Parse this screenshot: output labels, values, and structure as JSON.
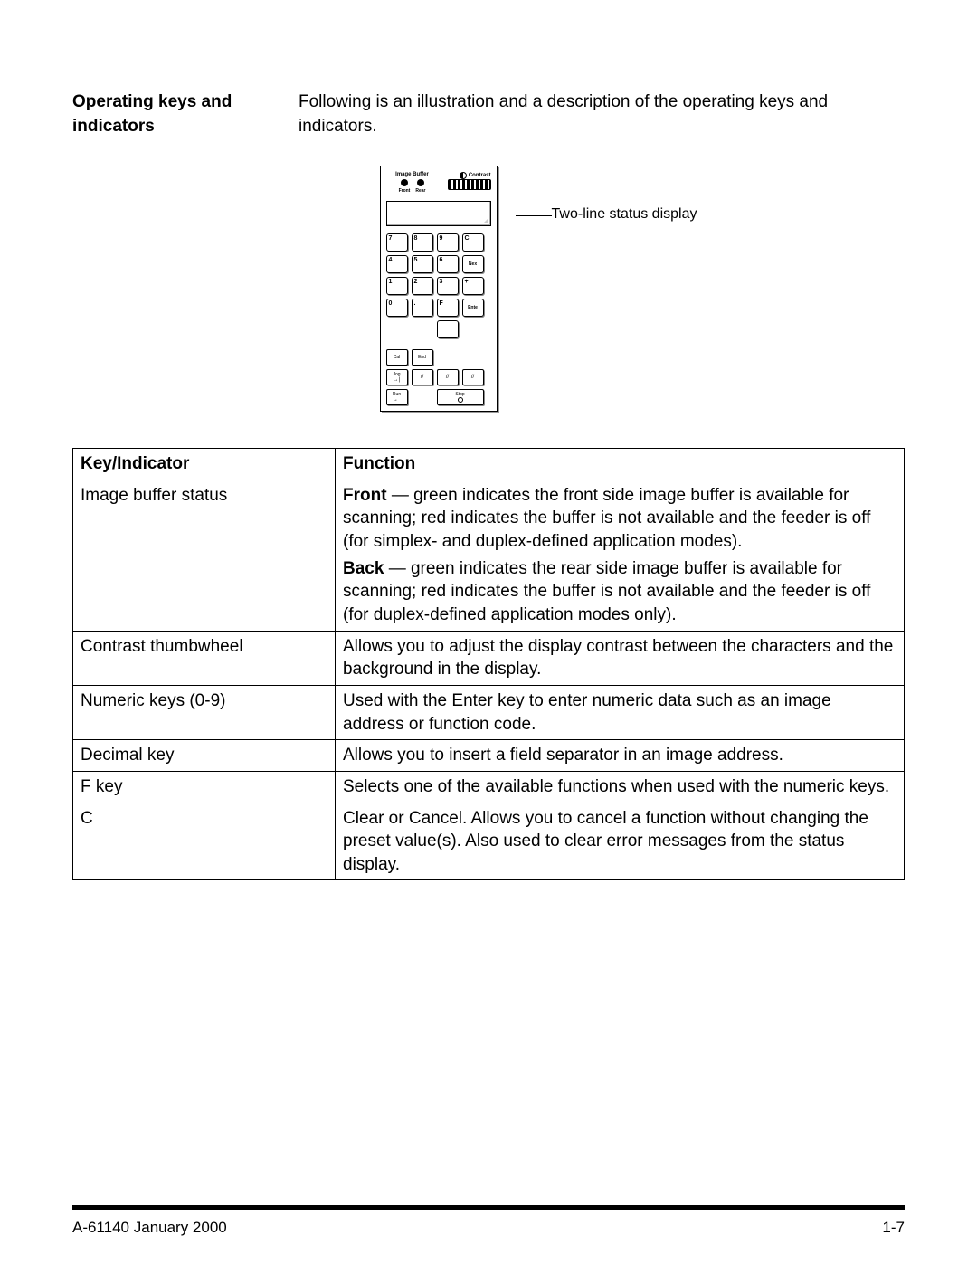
{
  "section": {
    "title": "Operating keys and indicators",
    "description": "Following is an illustration and a description of the operating keys and indicators."
  },
  "device": {
    "image_buffer_label": "Image Buffer",
    "contrast_label": "Contrast",
    "front_label": "Front",
    "rear_label": "Rear",
    "keys_row1": [
      "7",
      "8",
      "9",
      "C"
    ],
    "keys_row2": [
      "4",
      "5",
      "6",
      "Nex"
    ],
    "keys_row3": [
      "1",
      "2",
      "3",
      "+"
    ],
    "keys_row4": [
      "0",
      ".",
      "F",
      "Ente"
    ],
    "blank_key": "",
    "cal_label": "Cal",
    "end_label": "End",
    "jog_label": "Jog",
    "run_label": "Run",
    "stop_label": "Stop",
    "arrow_r": "→",
    "arrow_end": "→|",
    "slashes": "//"
  },
  "callout": {
    "status_display": "Two-line status display"
  },
  "table": {
    "header_key": "Key/Indicator",
    "header_fn": "Function",
    "rows": [
      {
        "key": "Image buffer status",
        "fn": [
          {
            "bold": "Front",
            "text": " — green indicates the front side image buffer is available for scanning; red indicates the buffer is not available and the feeder is off (for simplex- and duplex-defined application modes)."
          },
          {
            "bold": "Back",
            "text": " — green indicates the rear side image buffer is available for scanning; red indicates the buffer is not available and the feeder is off (for duplex-defined application modes only)."
          }
        ]
      },
      {
        "key": "Contrast thumbwheel",
        "fn": [
          {
            "bold": "",
            "text": "Allows you to adjust the display contrast between the characters and the background in the display."
          }
        ]
      },
      {
        "key": "Numeric keys (0-9)",
        "fn": [
          {
            "bold": "",
            "text": "Used with the Enter key to enter numeric data such as an image address or function code."
          }
        ]
      },
      {
        "key": "Decimal key",
        "fn": [
          {
            "bold": "",
            "text": "Allows you to insert a field separator in an image address."
          }
        ]
      },
      {
        "key": "F key",
        "fn": [
          {
            "bold": "",
            "text": "Selects one of the available functions when used with the numeric keys."
          }
        ]
      },
      {
        "key": "C",
        "fn": [
          {
            "bold": "",
            "text": "Clear or Cancel.  Allows you to cancel a function without changing the preset value(s).  Also used to clear error messages from the status display."
          }
        ]
      }
    ]
  },
  "footer": {
    "left": "A-61140  January 2000",
    "right": "1-7"
  }
}
